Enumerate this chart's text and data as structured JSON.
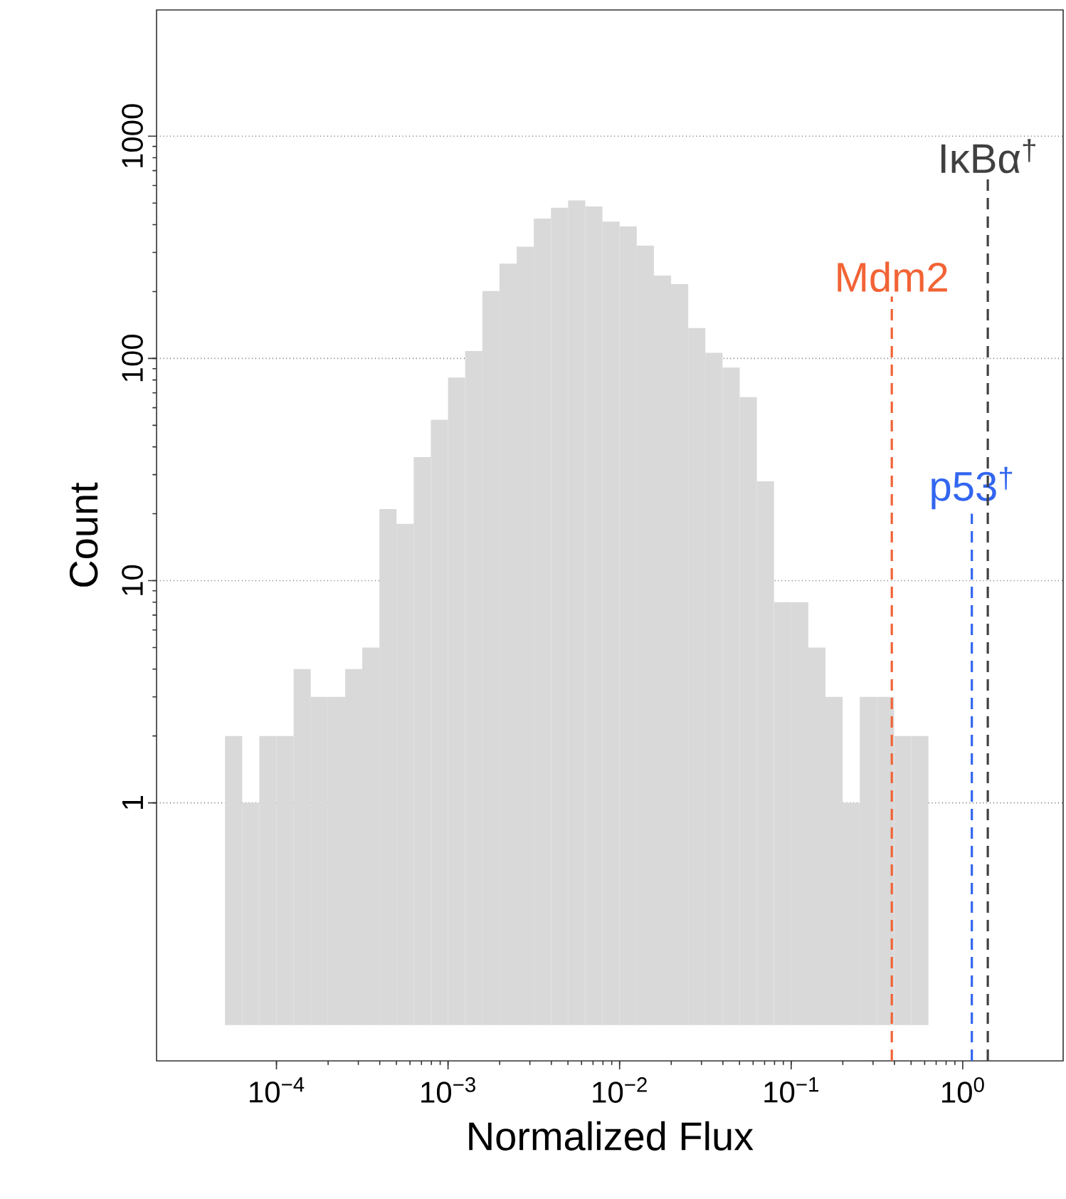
{
  "chart_data": {
    "type": "histogram",
    "xlabel": "Normalized Flux",
    "ylabel": "Count",
    "bins": [
      5.012e-05,
      6.31e-05,
      7.943e-05,
      0.0001,
      0.0001259,
      0.0001585,
      0.0001995,
      0.0002512,
      0.0003162,
      0.0003981,
      0.0005012,
      0.000631,
      0.0007943,
      0.001,
      0.001259,
      0.001585,
      0.001995,
      0.002512,
      0.003162,
      0.003981,
      0.005012,
      0.00631,
      0.007943,
      0.01,
      0.01259,
      0.01585,
      0.01995,
      0.02512,
      0.03162,
      0.03981,
      0.05012,
      0.0631,
      0.07943,
      0.1,
      0.1259,
      0.1585,
      0.1995,
      0.2512,
      0.3162,
      0.3981,
      0.5012,
      0.631
    ],
    "values": [
      2,
      1,
      2,
      2,
      4,
      3,
      3,
      4,
      5,
      21,
      18,
      36,
      53,
      82,
      108,
      201,
      267,
      318,
      426,
      477,
      514,
      483,
      413,
      393,
      322,
      236,
      216,
      137,
      106,
      91,
      67,
      28,
      8,
      8,
      5,
      3,
      1,
      3,
      3,
      2,
      2
    ],
    "color": "#d9d9d9",
    "log": "xy",
    "xlim": [
      2e-05,
      3.85
    ],
    "ylim": [
      0.069,
      3700
    ],
    "xticks": [
      {
        "value": 0.0001,
        "label": "10$^{−4}$"
      },
      {
        "value": 0.001,
        "label": "10$^{−3}$"
      },
      {
        "value": 0.01,
        "label": "10$^{−2}$"
      },
      {
        "value": 0.1,
        "label": "10$^{−1}$"
      },
      {
        "value": 1,
        "label": "10$^{0}$"
      }
    ],
    "yticks": [
      1,
      10,
      100,
      1000
    ],
    "grid": "y",
    "ref_lines": [
      {
        "axis": "x",
        "value": 0.386,
        "label": "Mdm2",
        "color": "#f26336",
        "line_style": "dashed"
      },
      {
        "axis": "x",
        "value": 1.13,
        "label": "p53$^{†}$",
        "color": "#3366f0",
        "line_style": "dashed"
      },
      {
        "axis": "x",
        "value": 1.4,
        "label": "IκBα$^{†}$",
        "color": "#404040",
        "line_style": "dashed"
      }
    ]
  }
}
